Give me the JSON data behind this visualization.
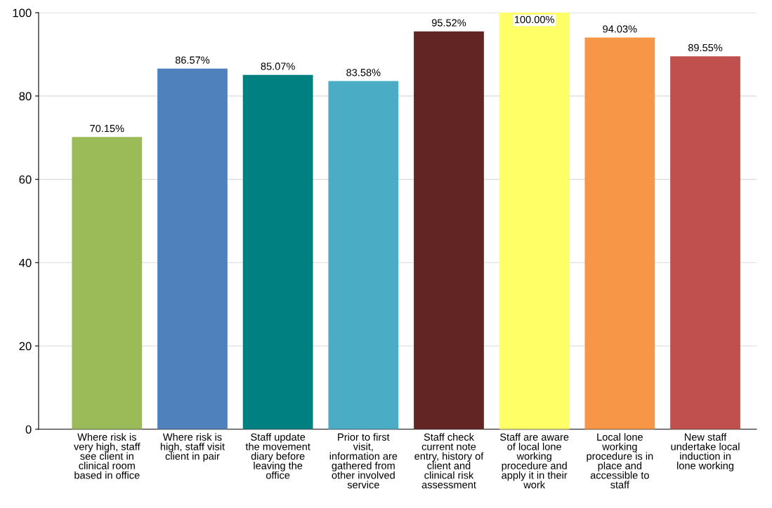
{
  "chart_data": {
    "type": "bar",
    "categories": [
      "Where risk is\nvery high, staff\nsee client in\nclinical room\nbased in office",
      "Where risk is\nhigh, staff visit\nclient in pair",
      "Staff update\nthe movement\ndiary before\nleaving the\noffice",
      "Prior to first\nvisit,\ninformation are\ngathered from\nother involved\nservice",
      "Staff check\ncurrent note\nentry, history of\nclient and\nclinical risk\nassessment",
      "Staff are aware\nof local lone\nworking\nprocedure and\napply it in their\nwork",
      "Local lone\nworking\nprocedure is in\nplace and\naccessible to\nstaff",
      "New staff\nundertake local\ninduction in\nlone working"
    ],
    "values": [
      70.15,
      86.57,
      85.07,
      83.58,
      95.52,
      100.0,
      94.03,
      89.55
    ],
    "value_labels": [
      "70.15%",
      "86.57%",
      "85.07%",
      "83.58%",
      "95.52%",
      "100.00%",
      "94.03%",
      "89.55%"
    ],
    "colors": [
      "#9bbb59",
      "#4f81bd",
      "#008080",
      "#4bacc6",
      "#632523",
      "#ffff66",
      "#f79646",
      "#c0504d"
    ],
    "ylim": [
      0,
      100
    ],
    "yticks": [
      0,
      20,
      40,
      60,
      80,
      100
    ],
    "grid": "y",
    "legend": false
  }
}
